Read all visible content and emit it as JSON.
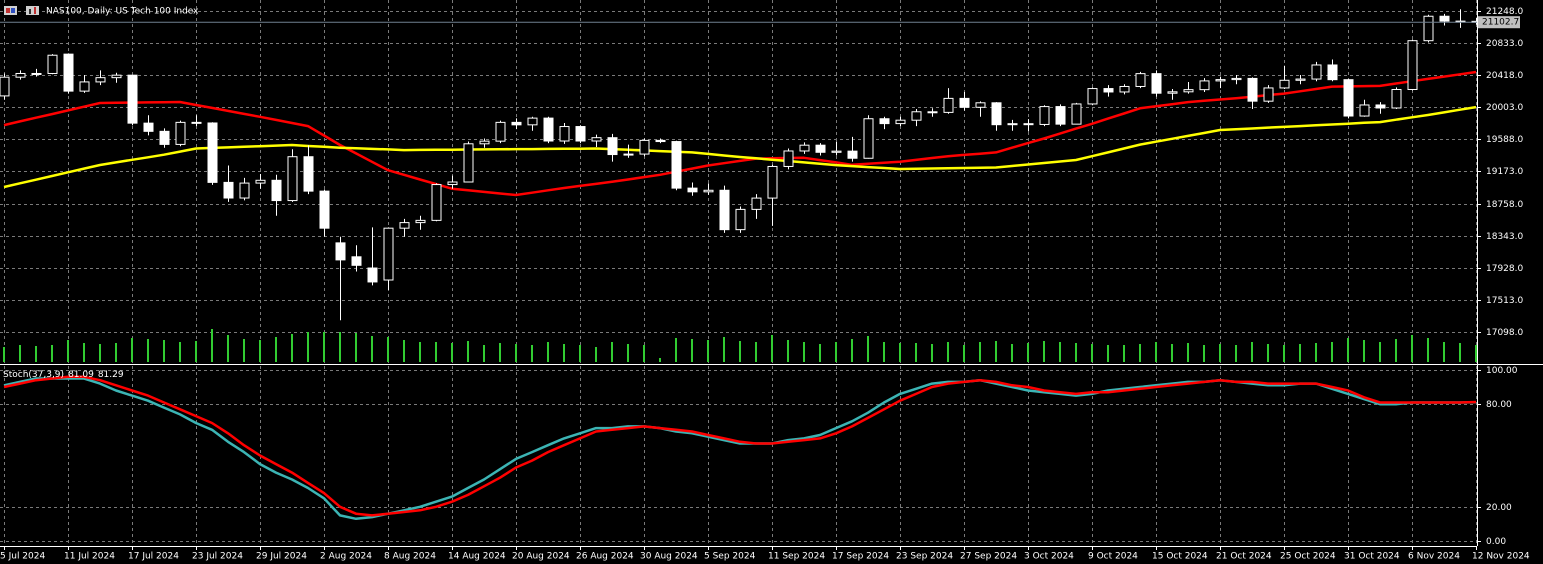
{
  "chart_data": [
    {
      "type": "candlestick",
      "title": "NAS100, Daily:  US Tech 100 Index",
      "categories": [
        "5 Jul 2024",
        null,
        null,
        null,
        "11 Jul 2024",
        null,
        null,
        null,
        "17 Jul 2024",
        null,
        null,
        null,
        "23 Jul 2024",
        null,
        null,
        null,
        "29 Jul 2024",
        null,
        null,
        null,
        "2 Aug 2024",
        null,
        null,
        null,
        "8 Aug 2024",
        null,
        null,
        null,
        "14 Aug 2024",
        null,
        null,
        null,
        "20 Aug 2024",
        null,
        null,
        null,
        "26 Aug 2024",
        null,
        null,
        null,
        "30 Aug 2024",
        null,
        null,
        null,
        "5 Sep 2024",
        null,
        null,
        null,
        "11 Sep 2024",
        null,
        null,
        null,
        "17 Sep 2024",
        null,
        null,
        null,
        "23 Sep 2024",
        null,
        null,
        null,
        "27 Sep 2024",
        null,
        null,
        null,
        "3 Oct 2024",
        null,
        null,
        null,
        "9 Oct 2024",
        null,
        null,
        null,
        "15 Oct 2024",
        null,
        null,
        null,
        "21 Oct 2024",
        null,
        null,
        null,
        "25 Oct 2024",
        null,
        null,
        null,
        "31 Oct 2024",
        null,
        null,
        null,
        "6 Nov 2024",
        null,
        null,
        null,
        "12 Nov 2024"
      ],
      "open": [
        20150,
        20392,
        20430,
        20440,
        20690,
        20212,
        20331,
        20386,
        20418,
        19798,
        19692,
        19523,
        19808,
        19800,
        19032,
        18830,
        19023,
        19059,
        18797,
        19364,
        18919,
        18250,
        18070,
        17925,
        17770,
        18440,
        18512,
        18541,
        19004,
        19037,
        19531,
        19565,
        19808,
        19776,
        19863,
        19567,
        19754,
        19567,
        19610,
        19392,
        19398,
        19575,
        19560,
        18958,
        18910,
        18930,
        18421,
        18683,
        18829,
        19238,
        19438,
        19513,
        19421,
        19436,
        19344,
        19855,
        19792,
        19836,
        19945,
        19937,
        20118,
        20003,
        20061,
        19778,
        19791,
        19781,
        20012,
        19785,
        20046,
        20245,
        20201,
        20272,
        20438,
        20185,
        20203,
        20231,
        20344,
        20361,
        20376,
        20082,
        20253,
        20352,
        20368,
        20550,
        20360,
        19890,
        20033,
        19994,
        20233,
        20864,
        21180,
        21117,
        21114
      ],
      "high": [
        20440,
        20480,
        20500,
        20690,
        20700,
        20420,
        20480,
        20450,
        20420,
        19900,
        19730,
        19830,
        19900,
        19810,
        19250,
        19090,
        19140,
        19130,
        19460,
        19510,
        18940,
        18330,
        18220,
        18450,
        18450,
        18560,
        18600,
        19020,
        19120,
        19560,
        19600,
        19830,
        19860,
        19880,
        19880,
        19800,
        19770,
        19650,
        19660,
        19520,
        19600,
        19600,
        19570,
        19030,
        19020,
        18990,
        18720,
        18880,
        19260,
        19470,
        19550,
        19540,
        19560,
        19620,
        19900,
        19880,
        19880,
        19980,
        19990,
        20250,
        20200,
        20080,
        20070,
        19840,
        19850,
        20030,
        20040,
        20060,
        20260,
        20290,
        20300,
        20460,
        20480,
        20240,
        20330,
        20380,
        20400,
        20420,
        20390,
        20290,
        20540,
        20420,
        20590,
        20620,
        20370,
        20100,
        20070,
        20260,
        20880,
        21200,
        21210,
        21270,
        21160
      ],
      "low": [
        20100,
        20360,
        20400,
        20430,
        20180,
        20190,
        20290,
        20320,
        19770,
        19640,
        19480,
        19500,
        19760,
        19000,
        18780,
        18800,
        18950,
        18600,
        18780,
        18880,
        18330,
        17250,
        17880,
        17700,
        17640,
        18330,
        18420,
        18530,
        18950,
        19030,
        19480,
        19540,
        19720,
        19700,
        19540,
        19530,
        19540,
        19490,
        19300,
        19350,
        19370,
        19540,
        18930,
        18860,
        18870,
        18380,
        18380,
        18560,
        18470,
        19200,
        19400,
        19380,
        19380,
        19300,
        19340,
        19720,
        19760,
        19760,
        19880,
        19920,
        19960,
        19880,
        19700,
        19700,
        19690,
        19760,
        19760,
        19780,
        20030,
        20140,
        20170,
        20250,
        20140,
        20100,
        20180,
        20200,
        20250,
        20300,
        19980,
        20060,
        20240,
        20300,
        20340,
        20340,
        19860,
        19880,
        19920,
        19980,
        20220,
        20840,
        21060,
        21030,
        21070
      ],
      "close": [
        20392,
        20440,
        20440,
        20676,
        20212,
        20331,
        20386,
        20418,
        19798,
        19692,
        19523,
        19808,
        19800,
        19032,
        18830,
        19023,
        19059,
        18797,
        19364,
        18919,
        18440,
        18030,
        17960,
        17745,
        18440,
        18512,
        18541,
        19004,
        19037,
        19531,
        19565,
        19808,
        19776,
        19863,
        19567,
        19754,
        19567,
        19610,
        19392,
        19398,
        19575,
        19560,
        18958,
        18910,
        18930,
        18421,
        18683,
        18829,
        19238,
        19438,
        19513,
        19421,
        19436,
        19344,
        19855,
        19792,
        19836,
        19945,
        19937,
        20118,
        20003,
        20061,
        19778,
        19791,
        19781,
        20012,
        19785,
        20046,
        20245,
        20201,
        20272,
        20438,
        20185,
        20203,
        20231,
        20344,
        20361,
        20376,
        20082,
        20253,
        20352,
        20368,
        20550,
        20360,
        19890,
        20033,
        19994,
        20233,
        20864,
        21180,
        21117,
        21114,
        21102.7
      ],
      "volume": [
        150,
        170,
        160,
        170,
        220,
        190,
        180,
        190,
        240,
        230,
        220,
        200,
        210,
        330,
        270,
        230,
        220,
        250,
        280,
        300,
        300,
        300,
        290,
        260,
        250,
        220,
        200,
        200,
        190,
        210,
        170,
        190,
        180,
        170,
        200,
        180,
        170,
        150,
        200,
        180,
        170,
        40,
        240,
        230,
        220,
        250,
        210,
        200,
        270,
        220,
        200,
        180,
        200,
        230,
        260,
        200,
        190,
        190,
        180,
        200,
        170,
        200,
        210,
        180,
        190,
        210,
        200,
        190,
        180,
        170,
        170,
        180,
        200,
        180,
        190,
        170,
        180,
        170,
        200,
        180,
        170,
        180,
        190,
        200,
        240,
        220,
        200,
        230,
        270,
        240,
        200,
        190,
        170
      ],
      "up_color": "#000000",
      "down_color": "#ffffff",
      "outline_color": "#ffffff",
      "volume_color": "#32cd32",
      "lines": [
        {
          "color": "#ff0000",
          "values": [
            19773,
            19820,
            19868,
            19915,
            19963,
            20010,
            20058,
            20061,
            20063,
            20066,
            20068,
            20071,
            20033,
            19995,
            19956,
            19918,
            19880,
            19840,
            19800,
            19760,
            19638,
            19515,
            19407,
            19298,
            19190,
            19130,
            19070,
            19010,
            18950,
            18930,
            18909,
            18889,
            18869,
            18899,
            18930,
            18960,
            18987,
            19013,
            19040,
            19070,
            19100,
            19130,
            19170,
            19210,
            19250,
            19280,
            19310,
            19340,
            19343,
            19347,
            19350,
            19320,
            19290,
            19260,
            19273,
            19287,
            19300,
            19323,
            19347,
            19370,
            19387,
            19403,
            19420,
            19480,
            19540,
            19600,
            19663,
            19727,
            19790,
            19857,
            19923,
            19990,
            20017,
            20043,
            20070,
            20087,
            20103,
            20120,
            20140,
            20160,
            20180,
            20210,
            20240,
            20270,
            20273,
            20277,
            20280,
            20310,
            20340,
            20370,
            20400,
            20430,
            20459
          ]
        },
        {
          "color": "#ffff00",
          "values": [
            18972,
            19020,
            19067,
            19115,
            19162,
            19210,
            19257,
            19290,
            19324,
            19357,
            19390,
            19430,
            19470,
            19478,
            19485,
            19493,
            19500,
            19508,
            19515,
            19503,
            19492,
            19480,
            19473,
            19465,
            19458,
            19450,
            19452,
            19453,
            19455,
            19457,
            19458,
            19460,
            19462,
            19463,
            19465,
            19467,
            19468,
            19470,
            19462,
            19453,
            19445,
            19437,
            19428,
            19420,
            19400,
            19380,
            19360,
            19343,
            19325,
            19308,
            19290,
            19273,
            19255,
            19243,
            19230,
            19218,
            19205,
            19208,
            19212,
            19215,
            19218,
            19222,
            19225,
            19244,
            19263,
            19283,
            19302,
            19321,
            19371,
            19420,
            19470,
            19520,
            19558,
            19596,
            19633,
            19671,
            19709,
            19719,
            19729,
            19740,
            19750,
            19760,
            19770,
            19781,
            19791,
            19802,
            19812,
            19842,
            19873,
            19903,
            19937,
            19972,
            20006
          ]
        }
      ],
      "ylim": [
        16697,
        21390
      ],
      "yticks": [
        {
          "value": 21248,
          "label": "21248.0"
        },
        {
          "value": 20833,
          "label": "20833.0"
        },
        {
          "value": 20418,
          "label": "20418.0"
        },
        {
          "value": 20003,
          "label": "20003.0"
        },
        {
          "value": 19588,
          "label": "19588.0"
        },
        {
          "value": 19173,
          "label": "19173.0"
        },
        {
          "value": 18758,
          "label": "18758.0"
        },
        {
          "value": 18343,
          "label": "18343.0"
        },
        {
          "value": 17928,
          "label": "17928.0"
        },
        {
          "value": 17513,
          "label": "17513.0"
        },
        {
          "value": 17098,
          "label": "17098.0"
        }
      ],
      "grid": true
    },
    {
      "type": "line",
      "title": "Stoch(37,3,9)",
      "series": [
        {
          "color": "#3cb4b4",
          "values": [
            91,
            93,
            95,
            95,
            95,
            95,
            92,
            88,
            85,
            82,
            78,
            74,
            69,
            65,
            58,
            52,
            45,
            40,
            36,
            31,
            25,
            15,
            13,
            14,
            16,
            18,
            20,
            23,
            26,
            31,
            36,
            42,
            48,
            52,
            56,
            60,
            63,
            66,
            66,
            67,
            67,
            66,
            64,
            63,
            61,
            59,
            57,
            57,
            57,
            59,
            60,
            62,
            66,
            70,
            75,
            81,
            86,
            89,
            92,
            93,
            93,
            94,
            92,
            90,
            88,
            87,
            86,
            85,
            86,
            88,
            89,
            90,
            91,
            92,
            93,
            93,
            94,
            93,
            92,
            91,
            91,
            92,
            92,
            89,
            86,
            83,
            80,
            80,
            81,
            81,
            81,
            81,
            81.09
          ]
        },
        {
          "color": "#ff0000",
          "values": [
            90,
            92,
            94,
            95,
            96,
            96,
            94,
            91,
            88,
            85,
            81,
            77,
            73,
            69,
            63,
            56,
            50,
            45,
            40,
            34,
            28,
            20,
            16,
            15,
            16,
            17,
            18,
            20,
            23,
            27,
            32,
            37,
            43,
            47,
            52,
            56,
            60,
            64,
            65,
            66,
            67,
            66,
            65,
            64,
            62,
            60,
            58,
            57,
            57,
            58,
            59,
            60,
            63,
            67,
            72,
            77,
            82,
            86,
            90,
            92,
            93,
            94,
            93,
            91,
            90,
            88,
            87,
            86,
            87,
            87,
            88,
            89,
            90,
            91,
            92,
            93,
            94,
            93,
            93,
            92,
            92,
            92,
            92,
            90,
            88,
            84,
            81,
            81,
            81,
            81,
            81,
            81,
            81.29
          ]
        }
      ],
      "ylim": [
        -2.3,
        102.3
      ],
      "yticks": [
        {
          "value": 100,
          "label": "100.00"
        },
        {
          "value": 80,
          "label": "80.00"
        },
        {
          "value": 20,
          "label": "20.00"
        },
        {
          "value": 0,
          "label": "0.00"
        }
      ],
      "grid": true
    }
  ]
}
